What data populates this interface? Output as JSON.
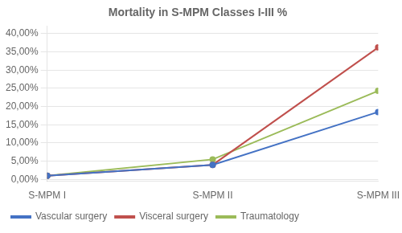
{
  "chart_data": {
    "type": "line",
    "title": "Mortality in S-MPM Classes I-III %",
    "categories": [
      "S-MPM I",
      "S-MPM II",
      "S-MPM III"
    ],
    "series": [
      {
        "name": "Vascular surgery",
        "color": "#4472C4",
        "values": [
          0.01,
          0.04,
          0.185
        ]
      },
      {
        "name": "Visceral surgery",
        "color": "#C0504D",
        "values": [
          0.01,
          0.04,
          0.362
        ]
      },
      {
        "name": "Traumatology",
        "color": "#9BBB59",
        "values": [
          0.01,
          0.055,
          0.243
        ]
      }
    ],
    "ylim": [
      -0.005,
      0.42
    ],
    "yticks": [
      {
        "value": 0.0,
        "label": "0,00%"
      },
      {
        "value": 0.05,
        "label": "5,00%"
      },
      {
        "value": 0.1,
        "label": "10,00%"
      },
      {
        "value": 0.15,
        "label": "15,00%"
      },
      {
        "value": 0.2,
        "label": "20,00%"
      },
      {
        "value": 0.25,
        "label": "25,00%"
      },
      {
        "value": 0.3,
        "label": "30,00%"
      },
      {
        "value": 0.35,
        "label": "35,00%"
      },
      {
        "value": 0.4,
        "label": "40,00%"
      }
    ],
    "grid": true,
    "legend": "bottom"
  }
}
